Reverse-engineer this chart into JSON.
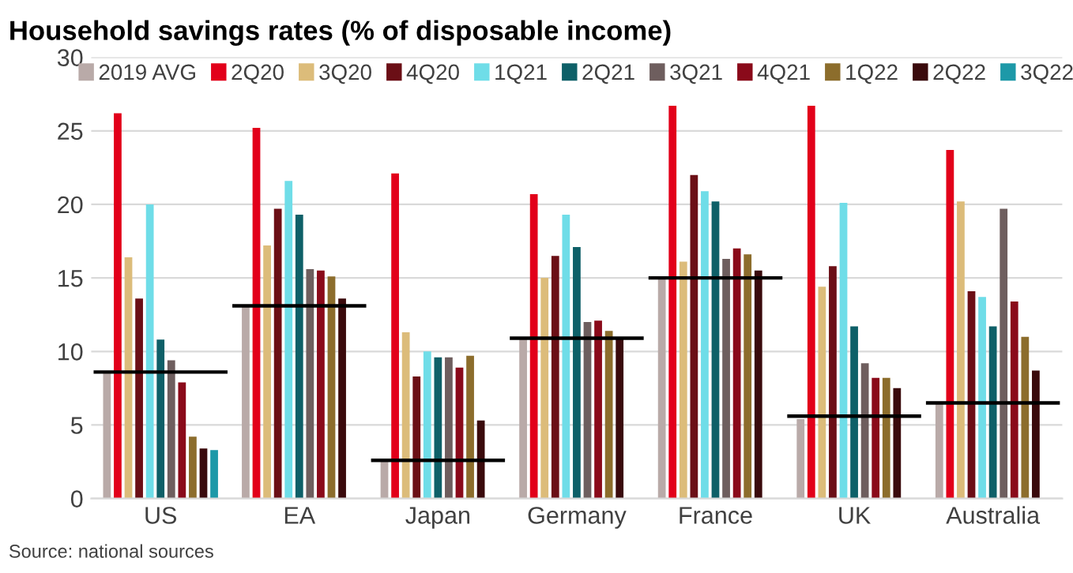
{
  "chart_data": {
    "type": "bar",
    "title": "Household savings rates (% of disposable income)",
    "categories": [
      "US",
      "EA",
      "Japan",
      "Germany",
      "France",
      "UK",
      "Australia"
    ],
    "series": [
      {
        "name": "2019 AVG",
        "color": "#b9aaa8",
        "values": [
          8.6,
          13.1,
          2.6,
          10.9,
          15.0,
          5.4,
          6.5
        ]
      },
      {
        "name": "2Q20",
        "color": "#e2001a",
        "values": [
          26.2,
          25.2,
          22.1,
          20.7,
          26.7,
          26.7,
          23.7
        ]
      },
      {
        "name": "3Q20",
        "color": "#dcbc7a",
        "values": [
          16.4,
          17.2,
          11.3,
          15.0,
          16.1,
          14.4,
          20.2
        ]
      },
      {
        "name": "4Q20",
        "color": "#6b0f16",
        "values": [
          13.6,
          19.7,
          8.3,
          16.5,
          22.0,
          15.8,
          14.1
        ]
      },
      {
        "name": "1Q21",
        "color": "#6fdde8",
        "values": [
          20.0,
          21.6,
          10.0,
          19.3,
          20.9,
          20.1,
          13.7
        ]
      },
      {
        "name": "2Q21",
        "color": "#0e6068",
        "values": [
          10.8,
          19.3,
          9.6,
          17.1,
          20.2,
          11.7,
          11.7
        ]
      },
      {
        "name": "3Q21",
        "color": "#6e5e5e",
        "values": [
          9.4,
          15.6,
          9.6,
          12.0,
          16.3,
          9.2,
          19.7
        ]
      },
      {
        "name": "4Q21",
        "color": "#8a0a1a",
        "values": [
          7.9,
          15.5,
          8.9,
          12.1,
          17.0,
          8.2,
          13.4
        ]
      },
      {
        "name": "1Q22",
        "color": "#8c6d2c",
        "values": [
          4.2,
          15.1,
          9.7,
          11.4,
          16.6,
          8.2,
          11.0
        ]
      },
      {
        "name": "2Q22",
        "color": "#3a0a0c",
        "values": [
          3.4,
          13.6,
          5.3,
          10.9,
          15.5,
          7.5,
          8.7
        ]
      },
      {
        "name": "3Q22",
        "color": "#1d99a8",
        "values": [
          3.3,
          null,
          null,
          null,
          null,
          null,
          null
        ]
      }
    ],
    "ref_lines": [
      {
        "axis": "y",
        "value": 8.6,
        "color": "#000000"
      },
      {
        "axis": "y",
        "value": 13.1,
        "color": "#000000"
      },
      {
        "axis": "y",
        "value": 2.6,
        "color": "#000000"
      },
      {
        "axis": "y",
        "value": 10.9,
        "color": "#000000"
      },
      {
        "axis": "y",
        "value": 15.0,
        "color": "#000000"
      },
      {
        "axis": "y",
        "value": 5.6,
        "color": "#000000"
      },
      {
        "axis": "y",
        "value": 6.5,
        "color": "#000000"
      }
    ],
    "ylim": [
      0,
      30
    ],
    "yticks": [
      0,
      5,
      10,
      15,
      20,
      25,
      30
    ],
    "grid": "y",
    "legend": "top",
    "annotations": [
      "Source: national sources"
    ]
  }
}
